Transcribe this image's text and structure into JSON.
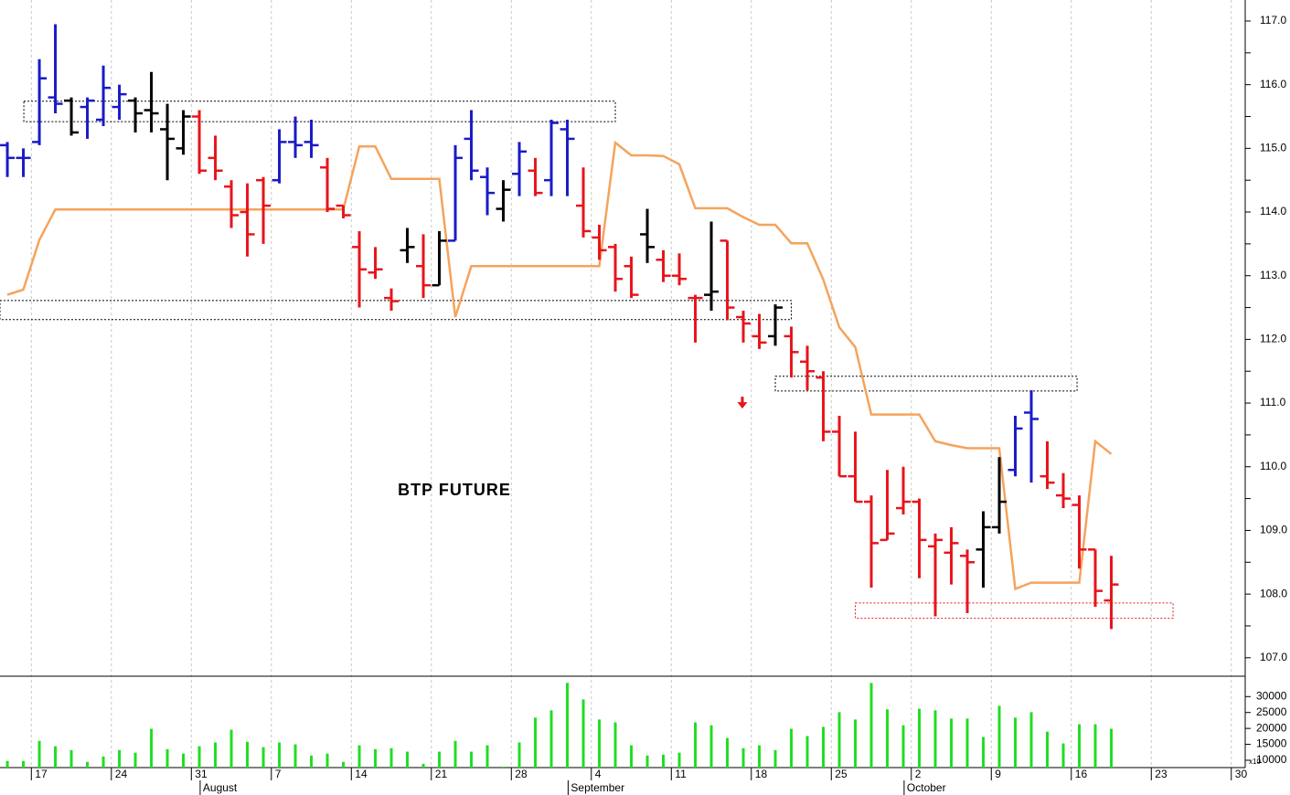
{
  "chart_data": {
    "type": "ohlc",
    "title": "BTP FUTURE",
    "open": [
      115.05,
      114.85,
      115.1,
      115.8,
      115.75,
      115.65,
      115.45,
      115.65,
      115.75,
      115.6,
      115.3,
      115.0,
      115.5,
      114.85,
      114.4,
      114.0,
      114.5,
      114.5,
      115.1,
      115.1,
      114.7,
      114.1,
      113.45,
      113.05,
      112.65,
      113.4,
      113.15,
      112.85,
      113.55,
      115.15,
      114.55,
      114.05,
      114.6,
      114.65,
      114.5,
      115.3,
      114.1,
      113.6,
      113.45,
      113.15,
      113.65,
      113.25,
      113.0,
      112.65,
      112.7,
      113.55,
      112.35,
      112.05,
      112.05,
      112.05,
      111.65,
      111.4,
      110.55,
      109.85,
      109.45,
      108.85,
      109.35,
      109.45,
      108.75,
      108.65,
      108.6,
      108.7,
      109.05,
      109.95,
      110.85,
      109.85,
      109.55,
      109.4,
      108.7,
      107.9
    ],
    "high": [
      115.1,
      115.0,
      116.4,
      116.95,
      115.8,
      115.8,
      116.3,
      116.0,
      115.8,
      116.2,
      115.7,
      115.6,
      115.6,
      115.2,
      114.5,
      114.45,
      114.55,
      115.3,
      115.5,
      115.45,
      114.85,
      114.1,
      113.7,
      113.45,
      112.8,
      113.75,
      113.65,
      113.7,
      115.05,
      115.6,
      114.7,
      114.5,
      115.1,
      114.85,
      115.45,
      115.45,
      114.7,
      113.8,
      113.5,
      113.3,
      114.05,
      113.4,
      113.35,
      112.7,
      113.85,
      113.55,
      112.45,
      112.4,
      112.55,
      112.2,
      111.9,
      111.5,
      110.8,
      110.55,
      109.55,
      109.95,
      110.0,
      109.5,
      108.95,
      109.05,
      108.7,
      109.3,
      110.15,
      110.8,
      111.2,
      110.4,
      109.9,
      109.55,
      108.7,
      108.6
    ],
    "low": [
      114.55,
      114.55,
      115.05,
      115.55,
      115.2,
      115.15,
      115.35,
      115.45,
      115.25,
      115.25,
      114.5,
      114.9,
      114.6,
      114.5,
      113.75,
      113.3,
      113.5,
      114.45,
      114.85,
      114.85,
      114.0,
      113.9,
      112.5,
      112.95,
      112.45,
      113.2,
      112.65,
      112.85,
      113.55,
      114.5,
      113.95,
      113.85,
      114.25,
      114.25,
      114.25,
      114.25,
      113.6,
      113.25,
      112.75,
      112.65,
      113.2,
      112.9,
      112.85,
      111.95,
      112.45,
      112.3,
      111.95,
      111.85,
      111.9,
      111.4,
      111.2,
      110.4,
      109.85,
      109.45,
      108.1,
      108.85,
      109.25,
      108.25,
      107.65,
      108.15,
      107.7,
      108.1,
      108.95,
      109.85,
      109.75,
      109.65,
      109.35,
      108.4,
      107.8,
      107.45
    ],
    "close": [
      114.85,
      114.85,
      116.1,
      115.7,
      115.25,
      115.75,
      115.95,
      115.85,
      115.55,
      115.55,
      115.15,
      115.5,
      114.65,
      114.65,
      113.95,
      113.65,
      114.1,
      115.1,
      115.05,
      115.05,
      114.05,
      113.95,
      113.1,
      113.1,
      112.6,
      113.45,
      112.85,
      113.55,
      114.85,
      114.65,
      114.3,
      114.35,
      114.95,
      114.3,
      115.4,
      115.15,
      113.7,
      113.4,
      112.95,
      112.7,
      113.45,
      113.0,
      112.95,
      112.65,
      112.75,
      112.5,
      112.25,
      111.95,
      112.5,
      111.8,
      111.5,
      110.55,
      109.85,
      109.45,
      108.8,
      108.95,
      109.45,
      108.85,
      108.85,
      108.8,
      108.5,
      109.05,
      109.45,
      110.6,
      110.75,
      109.75,
      109.5,
      108.7,
      108.05,
      108.15
    ],
    "colors": [
      "#1a1ac8",
      "#1a1ac8",
      "#1a1ac8",
      "#1a1ac8",
      "#000000",
      "#1a1ac8",
      "#1a1ac8",
      "#1a1ac8",
      "#000000",
      "#000000",
      "#000000",
      "#000000",
      "#e8141b",
      "#e8141b",
      "#e8141b",
      "#e8141b",
      "#e8141b",
      "#1a1ac8",
      "#1a1ac8",
      "#1a1ac8",
      "#e8141b",
      "#e8141b",
      "#e8141b",
      "#e8141b",
      "#e8141b",
      "#000000",
      "#e8141b",
      "#000000",
      "#1a1ac8",
      "#1a1ac8",
      "#1a1ac8",
      "#000000",
      "#1a1ac8",
      "#e8141b",
      "#1a1ac8",
      "#1a1ac8",
      "#e8141b",
      "#e8141b",
      "#e8141b",
      "#e8141b",
      "#000000",
      "#e8141b",
      "#e8141b",
      "#e8141b",
      "#000000",
      "#e8141b",
      "#e8141b",
      "#e8141b",
      "#000000",
      "#e8141b",
      "#e8141b",
      "#e8141b",
      "#e8141b",
      "#e8141b",
      "#e8141b",
      "#e8141b",
      "#e8141b",
      "#e8141b",
      "#e8141b",
      "#e8141b",
      "#e8141b",
      "#000000",
      "#000000",
      "#1a1ac8",
      "#1a1ac8",
      "#e8141b",
      "#e8141b",
      "#e8141b",
      "#e8141b",
      "#e8141b"
    ],
    "line": {
      "color": "#f5a35c",
      "values": [
        112.7,
        112.78,
        113.56,
        114.04,
        114.04,
        114.04,
        114.04,
        114.04,
        114.04,
        114.04,
        114.04,
        114.04,
        114.04,
        114.04,
        114.04,
        114.04,
        114.04,
        114.04,
        114.04,
        114.04,
        114.04,
        114.04,
        115.03,
        115.03,
        114.52,
        114.52,
        114.52,
        114.52,
        112.35,
        113.15,
        113.15,
        113.15,
        113.15,
        113.15,
        113.15,
        113.15,
        113.15,
        113.15,
        115.09,
        114.89,
        114.89,
        114.88,
        114.75,
        114.06,
        114.06,
        114.06,
        113.92,
        113.8,
        113.8,
        113.51,
        113.51,
        112.94,
        112.19,
        111.88,
        110.82,
        110.82,
        110.82,
        110.82,
        110.4,
        110.34,
        110.29,
        110.29,
        110.29,
        108.08,
        108.18,
        108.18,
        108.18,
        108.18,
        110.4,
        110.2
      ]
    },
    "volume": {
      "color": "#22dd22",
      "axis": "y2",
      "values": [
        9800,
        9800,
        16100,
        14400,
        13200,
        9500,
        11200,
        13200,
        12400,
        19900,
        13500,
        12100,
        14400,
        15600,
        19600,
        15800,
        14100,
        15600,
        15000,
        11500,
        12100,
        9500,
        14700,
        13500,
        13800,
        12700,
        8900,
        12700,
        16100,
        12700,
        14700,
        8000,
        15600,
        23400,
        25700,
        34300,
        29100,
        22800,
        21900,
        14700,
        11500,
        11800,
        12400,
        21900,
        21000,
        17000,
        13800,
        14700,
        13200,
        19900,
        17600,
        20500,
        25100,
        22800,
        34300,
        26000,
        21000,
        26200,
        25700,
        23100,
        23100,
        17300,
        27100,
        23400,
        25100,
        19000,
        15300,
        21300,
        21300,
        19900
      ]
    },
    "zones": [
      {
        "from": 1.03,
        "to": 38,
        "low": 115.42,
        "high": 115.74,
        "color": "#000000"
      },
      {
        "from": -0.46,
        "to": 49,
        "low": 112.31,
        "high": 112.61,
        "color": "#000000"
      },
      {
        "from": 48,
        "to": 66.86,
        "low": 111.19,
        "high": 111.42,
        "color": "#000000"
      },
      {
        "from": 53,
        "to": 72.86,
        "low": 107.62,
        "high": 107.86,
        "color": "#e8141b"
      }
    ],
    "arrows": [
      {
        "x": 45.94,
        "y": 111.0,
        "color": "#e8141b"
      }
    ],
    "xlim": [
      -0.46,
      77.37
    ],
    "xticks": [
      {
        "value": 1.5,
        "label": "17"
      },
      {
        "value": 6.5,
        "label": "24"
      },
      {
        "value": 11.5,
        "label": "31"
      },
      {
        "value": 16.5,
        "label": "7"
      },
      {
        "value": 21.5,
        "label": "14"
      },
      {
        "value": 26.5,
        "label": "21"
      },
      {
        "value": 31.5,
        "label": "28"
      },
      {
        "value": 36.5,
        "label": "4"
      },
      {
        "value": 41.5,
        "label": "11"
      },
      {
        "value": 46.5,
        "label": "18"
      },
      {
        "value": 51.5,
        "label": "25"
      },
      {
        "value": 56.5,
        "label": "2"
      },
      {
        "value": 61.5,
        "label": "9"
      },
      {
        "value": 66.5,
        "label": "16"
      },
      {
        "value": 71.5,
        "label": "23"
      },
      {
        "value": 76.5,
        "label": "30"
      }
    ],
    "month_ticks": [
      {
        "value": 12.05,
        "label": "August"
      },
      {
        "value": 35.05,
        "label": "September"
      },
      {
        "value": 56.05,
        "label": "October"
      }
    ],
    "ylim": [
      106.71,
      117.33
    ],
    "yticks": [
      {
        "value": 107,
        "label": "107.0"
      },
      107.5,
      {
        "value": 108,
        "label": "108.0"
      },
      108.5,
      {
        "value": 109,
        "label": "109.0"
      },
      109.5,
      {
        "value": 110,
        "label": "110.0"
      },
      110.5,
      {
        "value": 111,
        "label": "111.0"
      },
      111.5,
      {
        "value": 112,
        "label": "112.0"
      },
      112.5,
      {
        "value": 113,
        "label": "113.0"
      },
      113.5,
      {
        "value": 114,
        "label": "114.0"
      },
      114.5,
      {
        "value": 115,
        "label": "115.0"
      },
      115.5,
      {
        "value": 116,
        "label": "116.0"
      },
      116.5,
      {
        "value": 117,
        "label": "117.0"
      }
    ],
    "y2lim": [
      7700,
      36400
    ],
    "y2ticks": [
      10000,
      15000,
      20000,
      25000,
      30000
    ],
    "y2_multiplier": "x10",
    "grid": true
  }
}
